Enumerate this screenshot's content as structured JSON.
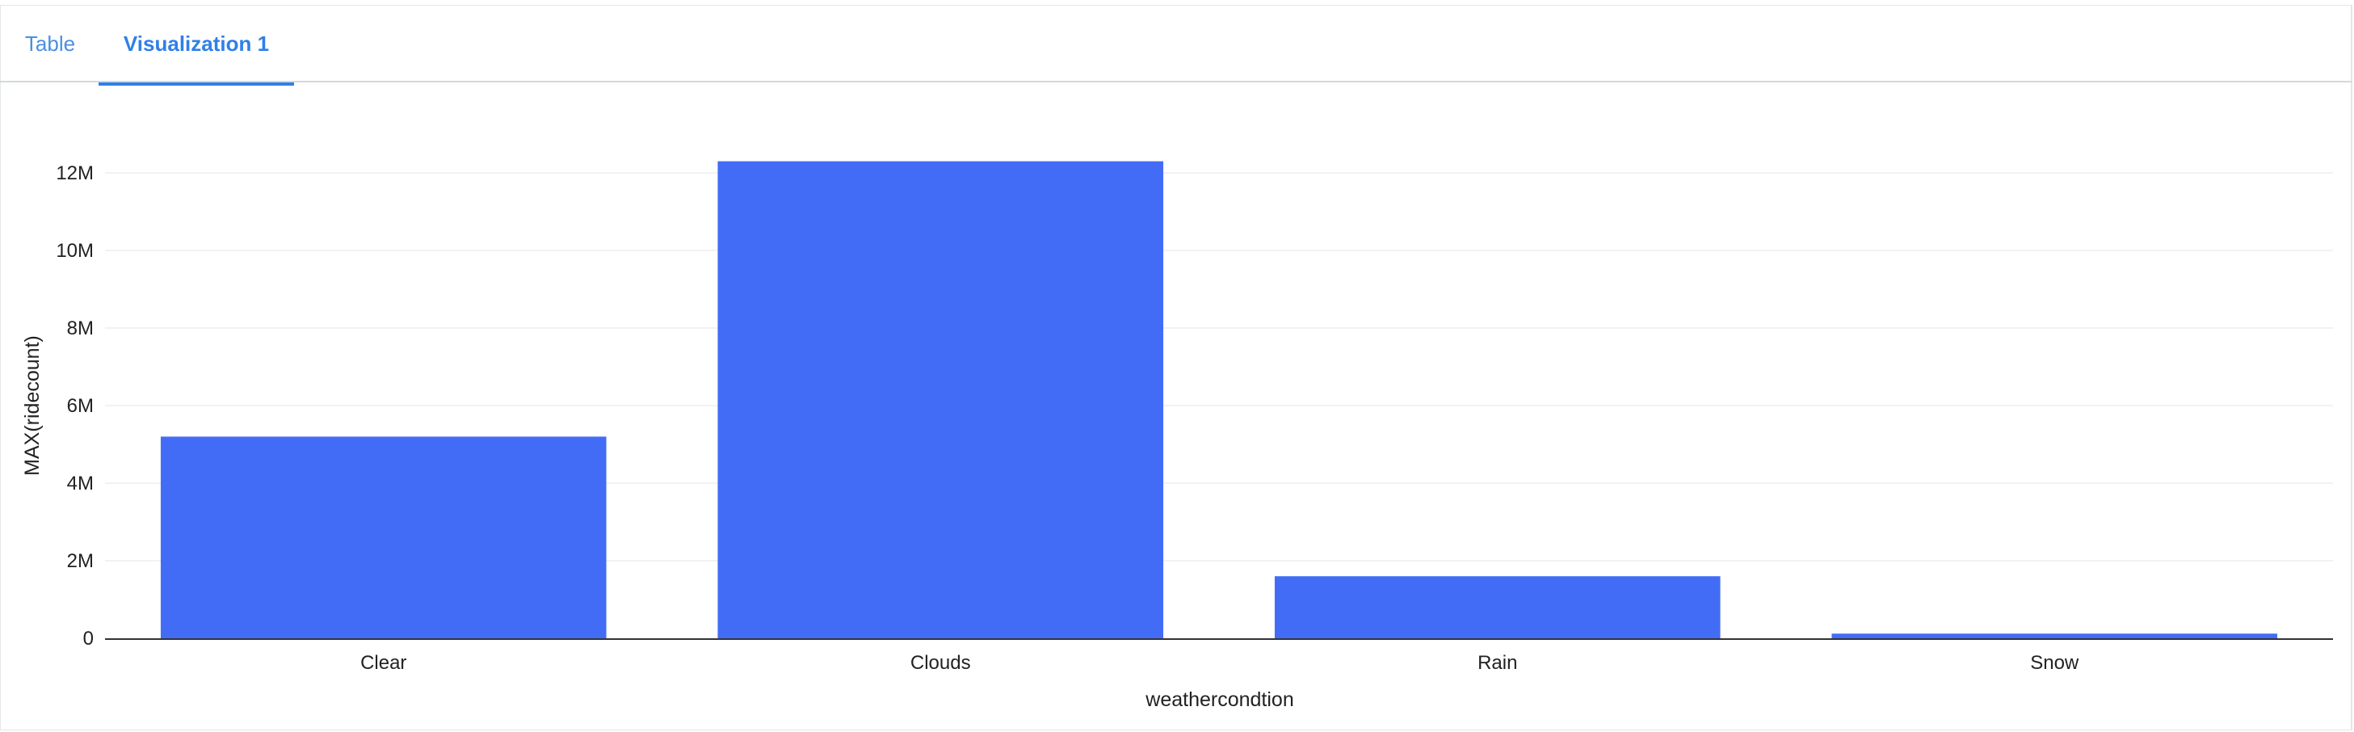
{
  "tabs": [
    {
      "label": "Table",
      "active": false
    },
    {
      "label": "Visualization 1",
      "active": true
    }
  ],
  "colors": {
    "bar": "#436cf6",
    "tab_active": "#2f80e8",
    "tab_inactive": "#4a8fe0",
    "grid": "#ebedf0"
  },
  "chart_data": {
    "type": "bar",
    "categories": [
      "Clear",
      "Clouds",
      "Rain",
      "Snow"
    ],
    "values": [
      5200000,
      12300000,
      1600000,
      120000
    ],
    "xlabel": "weathercondtion",
    "ylabel": "MAX(ridecount)",
    "ylim": [
      0,
      13000000
    ],
    "yticks": [
      0,
      2000000,
      4000000,
      6000000,
      8000000,
      10000000,
      12000000
    ],
    "ytick_labels": [
      "0",
      "2M",
      "4M",
      "6M",
      "8M",
      "10M",
      "12M"
    ],
    "grid": true,
    "legend": "none"
  }
}
